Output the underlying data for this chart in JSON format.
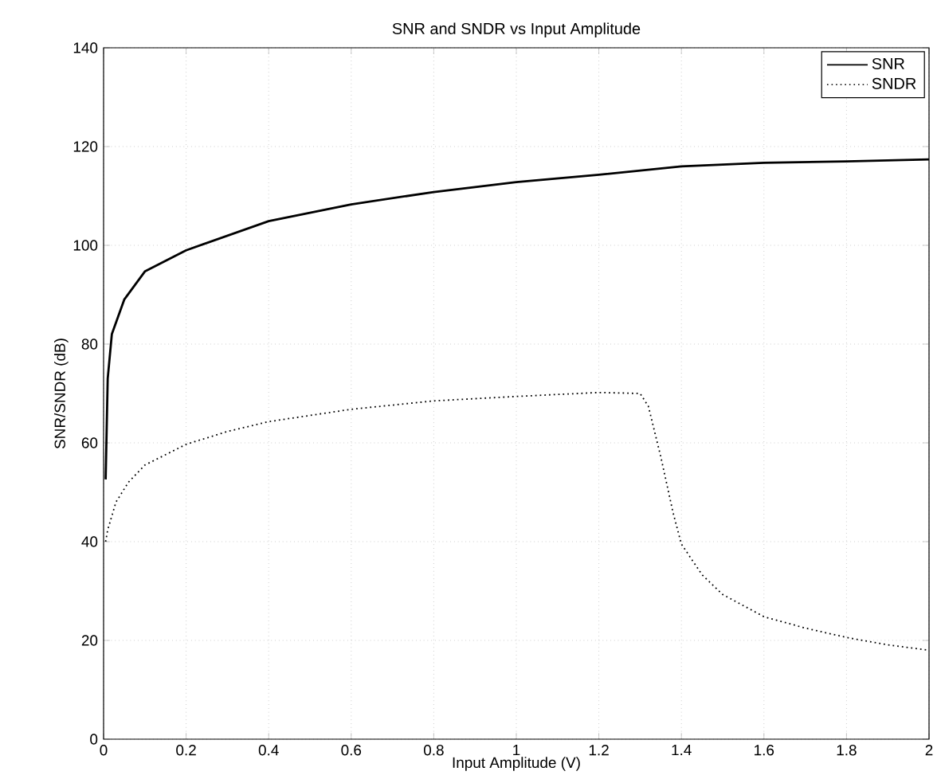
{
  "chart_data": {
    "type": "line",
    "title": "SNR and SNDR vs Input Amplitude",
    "xlabel": "Input Amplitude (V)",
    "ylabel": "SNR/SNDR (dB)",
    "xlim": [
      0,
      2
    ],
    "ylim": [
      0,
      140
    ],
    "xticks": [
      0,
      0.2,
      0.4,
      0.6,
      0.8,
      1,
      1.2,
      1.4,
      1.6,
      1.8,
      2
    ],
    "yticks": [
      0,
      20,
      40,
      60,
      80,
      100,
      120,
      140
    ],
    "grid": true,
    "legend": "top right",
    "series": [
      {
        "name": "SNR",
        "color": "#000000",
        "line_style": "solid",
        "x": [
          0.005,
          0.01,
          0.02,
          0.05,
          0.1,
          0.2,
          0.4,
          0.6,
          0.8,
          1.0,
          1.2,
          1.4,
          1.6,
          1.8,
          2.0
        ],
        "values": [
          52.6,
          73,
          82,
          89,
          94.7,
          99,
          104.9,
          108.3,
          110.8,
          112.8,
          114.3,
          116,
          116.7,
          117,
          117.4
        ]
      },
      {
        "name": "SNDR",
        "color": "#000000",
        "line_style": "dotted",
        "x": [
          0.005,
          0.01,
          0.03,
          0.06,
          0.1,
          0.2,
          0.3,
          0.4,
          0.6,
          0.8,
          1.0,
          1.2,
          1.3,
          1.32,
          1.35,
          1.38,
          1.4,
          1.45,
          1.5,
          1.6,
          1.7,
          1.8,
          1.9,
          2.0
        ],
        "values": [
          40,
          42.4,
          48,
          52,
          55.5,
          59.7,
          62.3,
          64.3,
          66.8,
          68.5,
          69.4,
          70.2,
          70,
          67.4,
          57.2,
          45.8,
          39.5,
          33.3,
          29.3,
          24.8,
          22.5,
          20.6,
          19.1,
          18
        ]
      }
    ]
  }
}
